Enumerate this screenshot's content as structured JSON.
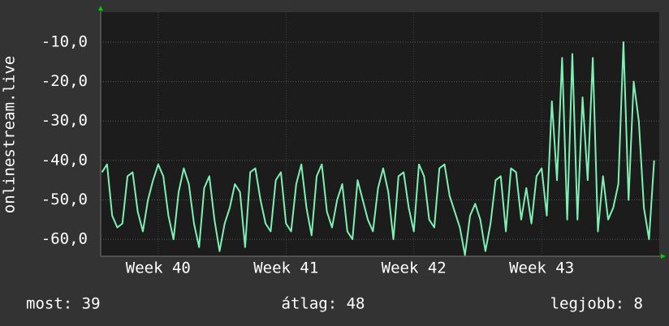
{
  "chart_data": {
    "type": "line",
    "ylabel": "onlinestream.live",
    "x": [
      39.56,
      39.6,
      39.64,
      39.68,
      39.72,
      39.76,
      39.8,
      39.84,
      39.88,
      39.92,
      39.96,
      40,
      40.04,
      40.08,
      40.12,
      40.16,
      40.2,
      40.24,
      40.28,
      40.32,
      40.36,
      40.4,
      40.44,
      40.48,
      40.52,
      40.56,
      40.6,
      40.64,
      40.68,
      40.72,
      40.76,
      40.8,
      40.84,
      40.88,
      40.92,
      40.96,
      41,
      41.04,
      41.08,
      41.12,
      41.16,
      41.2,
      41.24,
      41.28,
      41.32,
      41.36,
      41.4,
      41.44,
      41.48,
      41.52,
      41.56,
      41.6,
      41.64,
      41.68,
      41.72,
      41.76,
      41.8,
      41.84,
      41.88,
      41.92,
      41.96,
      42,
      42.04,
      42.08,
      42.12,
      42.16,
      42.2,
      42.24,
      42.28,
      42.32,
      42.36,
      42.4,
      42.44,
      42.48,
      42.52,
      42.56,
      42.6,
      42.64,
      42.68,
      42.72,
      42.76,
      42.8,
      42.84,
      42.88,
      42.92,
      42.96,
      43,
      43.04,
      43.08,
      43.12,
      43.16,
      43.2,
      43.24,
      43.28,
      43.32,
      43.36,
      43.4,
      43.44,
      43.48,
      43.52,
      43.56,
      43.6,
      43.64,
      43.68,
      43.72,
      43.76,
      43.8,
      43.84,
      43.88
    ],
    "series": [
      {
        "color": "#7ff0b4",
        "values": [
          -43,
          -41,
          -54,
          -57,
          -56,
          -44,
          -43,
          -53,
          -58,
          -50,
          -45,
          -41,
          -44,
          -54,
          -60,
          -48,
          -42,
          -46,
          -56,
          -62,
          -47,
          -44,
          -55,
          -63,
          -56,
          -52,
          -46,
          -48,
          -62,
          -43,
          -42,
          -50,
          -56,
          -58,
          -45,
          -43,
          -56,
          -58,
          -46,
          -41,
          -52,
          -59,
          -44,
          -41,
          -53,
          -57,
          -50,
          -46,
          -58,
          -60,
          -45,
          -50,
          -55,
          -58,
          -47,
          -42,
          -48,
          -60,
          -44,
          -43,
          -52,
          -58,
          -41,
          -44,
          -55,
          -57,
          -42,
          -41,
          -49,
          -53,
          -57,
          -64,
          -54,
          -51,
          -55,
          -63,
          -56,
          -45,
          -44,
          -58,
          -42,
          -43,
          -55,
          -47,
          -56,
          -44,
          -42,
          -54,
          -25,
          -45,
          -14,
          -55,
          -13,
          -55,
          -24,
          -45,
          -14,
          -58,
          -44,
          -55,
          -52,
          -46,
          -10,
          -50,
          -20,
          -30,
          -52,
          -60,
          -40
        ]
      }
    ],
    "xlim": [
      39.55,
      43.92
    ],
    "xticks": [
      {
        "value": 40,
        "label": "Week 40"
      },
      {
        "value": 41,
        "label": "Week 41"
      },
      {
        "value": 42,
        "label": "Week 42"
      },
      {
        "value": 43,
        "label": "Week 43"
      }
    ],
    "ylim": [
      -64.3,
      -2.4
    ],
    "yticks": [
      {
        "value": -60,
        "label": "-60,0"
      },
      {
        "value": -50,
        "label": "-50,0"
      },
      {
        "value": -40,
        "label": "-40,0"
      },
      {
        "value": -30,
        "label": "-30,0"
      },
      {
        "value": -20,
        "label": "-20,0"
      },
      {
        "value": -10,
        "label": "-10,0"
      }
    ],
    "grid": true,
    "footer": [
      "most: 39",
      "átlag: 48",
      "legjobb: 8"
    ]
  }
}
